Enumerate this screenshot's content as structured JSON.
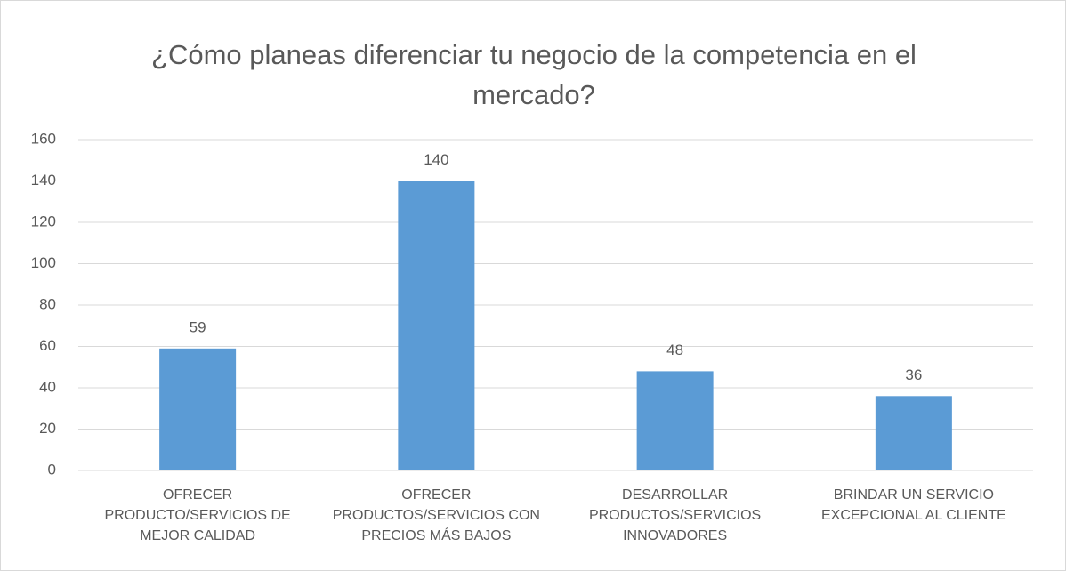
{
  "chart_data": {
    "type": "bar",
    "title": "¿Cómo planeas diferenciar tu negocio de la competencia en el mercado?",
    "categories": [
      "OFRECER PRODUCTO/SERVICIOS DE MEJOR CALIDAD",
      "OFRECER PRODUCTOS/SERVICIOS CON PRECIOS MÁS BAJOS",
      "DESARROLLAR PRODUCTOS/SERVICIOS INNOVADORES",
      "BRINDAR UN SERVICIO EXCEPCIONAL AL CLIENTE"
    ],
    "values": [
      59,
      140,
      48,
      36
    ],
    "color": "#5b9bd5",
    "ylim": [
      0,
      160
    ],
    "yticks": [
      0,
      20,
      40,
      60,
      80,
      100,
      120,
      140,
      160
    ],
    "grid": true
  }
}
